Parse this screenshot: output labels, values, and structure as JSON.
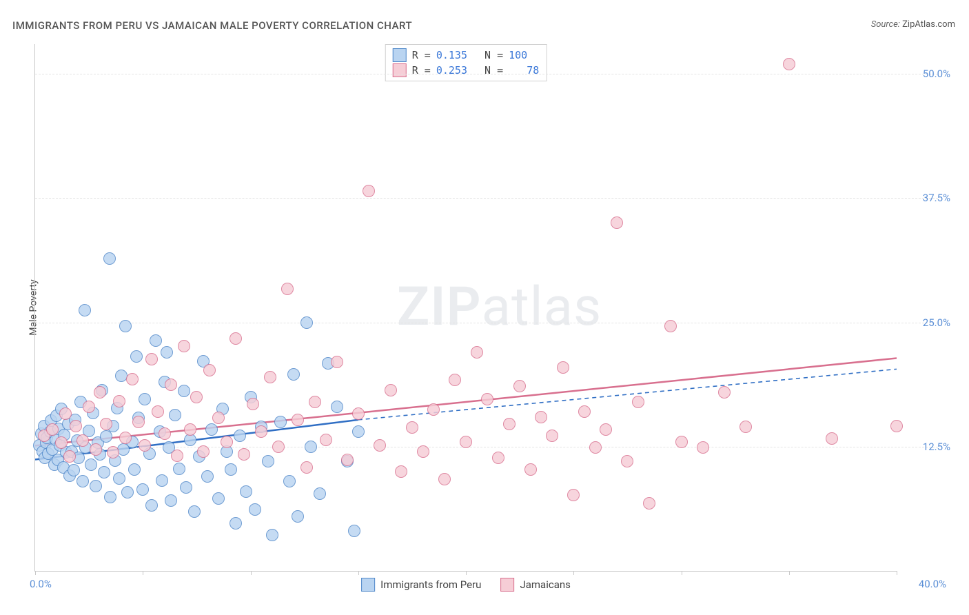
{
  "title": "IMMIGRANTS FROM PERU VS JAMAICAN MALE POVERTY CORRELATION CHART",
  "source_label": "Source:",
  "source_value": "ZipAtlas.com",
  "y_axis_label": "Male Poverty",
  "watermark_a": "ZIP",
  "watermark_b": "atlas",
  "chart": {
    "type": "scatter",
    "background_color": "#ffffff",
    "grid_color": "#e3e3e3",
    "axis_color": "#c8c8c8",
    "tick_label_color": "#5b8fd6",
    "xlim": [
      0,
      40
    ],
    "ylim": [
      0,
      53
    ],
    "x_ticks": [
      0,
      5,
      10,
      15,
      20,
      25,
      30,
      35,
      40
    ],
    "y_ticks": [
      12.5,
      25.0,
      37.5,
      50.0
    ],
    "y_tick_labels": [
      "12.5%",
      "25.0%",
      "37.5%",
      "50.0%"
    ],
    "x_origin_label": "0.0%",
    "x_max_label": "40.0%",
    "point_radius": 8,
    "point_border_width": 1.2
  },
  "series": [
    {
      "key": "peru",
      "label": "Immigrants from Peru",
      "fill": "#b9d4f1",
      "stroke": "#4f87c9",
      "r_value": "0.135",
      "n_value": "100",
      "trend": {
        "x1": 0,
        "y1": 11.2,
        "x2": 15,
        "y2": 15.2,
        "dash_x2": 40,
        "dash_y2": 20.3,
        "color": "#2f6ec4",
        "width": 2.5
      },
      "points": [
        [
          0.2,
          12.6
        ],
        [
          0.3,
          13.8
        ],
        [
          0.35,
          12.0
        ],
        [
          0.4,
          14.6
        ],
        [
          0.45,
          11.4
        ],
        [
          0.5,
          12.9
        ],
        [
          0.55,
          13.4
        ],
        [
          0.6,
          11.8
        ],
        [
          0.7,
          14.0
        ],
        [
          0.75,
          15.1
        ],
        [
          0.8,
          12.2
        ],
        [
          0.9,
          10.7
        ],
        [
          0.95,
          13.2
        ],
        [
          1.0,
          15.6
        ],
        [
          1.05,
          11.2
        ],
        [
          1.1,
          14.3
        ],
        [
          1.15,
          12.6
        ],
        [
          1.2,
          16.3
        ],
        [
          1.3,
          10.4
        ],
        [
          1.35,
          13.7
        ],
        [
          1.45,
          11.9
        ],
        [
          1.55,
          14.8
        ],
        [
          1.6,
          9.6
        ],
        [
          1.7,
          12.0
        ],
        [
          1.8,
          10.1
        ],
        [
          1.85,
          15.2
        ],
        [
          1.95,
          13.1
        ],
        [
          2.0,
          11.4
        ],
        [
          2.1,
          17.0
        ],
        [
          2.2,
          9.0
        ],
        [
          2.3,
          26.2
        ],
        [
          2.35,
          12.4
        ],
        [
          2.5,
          14.1
        ],
        [
          2.6,
          10.7
        ],
        [
          2.7,
          15.9
        ],
        [
          2.8,
          8.5
        ],
        [
          2.9,
          12.9
        ],
        [
          3.0,
          11.7
        ],
        [
          3.1,
          18.2
        ],
        [
          3.2,
          9.9
        ],
        [
          3.3,
          13.5
        ],
        [
          3.45,
          31.4
        ],
        [
          3.5,
          7.4
        ],
        [
          3.6,
          14.6
        ],
        [
          3.7,
          11.1
        ],
        [
          3.8,
          16.4
        ],
        [
          3.9,
          9.3
        ],
        [
          4.0,
          19.6
        ],
        [
          4.1,
          12.2
        ],
        [
          4.2,
          24.6
        ],
        [
          4.3,
          7.9
        ],
        [
          4.5,
          13.0
        ],
        [
          4.6,
          10.2
        ],
        [
          4.7,
          21.6
        ],
        [
          4.8,
          15.4
        ],
        [
          5.0,
          8.2
        ],
        [
          5.1,
          17.3
        ],
        [
          5.3,
          11.8
        ],
        [
          5.4,
          6.6
        ],
        [
          5.6,
          23.2
        ],
        [
          5.8,
          14.0
        ],
        [
          5.9,
          9.1
        ],
        [
          6.0,
          19.0
        ],
        [
          6.1,
          22.0
        ],
        [
          6.2,
          12.4
        ],
        [
          6.3,
          7.1
        ],
        [
          6.5,
          15.7
        ],
        [
          6.7,
          10.3
        ],
        [
          6.9,
          18.1
        ],
        [
          7.0,
          8.4
        ],
        [
          7.2,
          13.2
        ],
        [
          7.4,
          6.0
        ],
        [
          7.6,
          11.5
        ],
        [
          7.8,
          21.1
        ],
        [
          8.0,
          9.5
        ],
        [
          8.2,
          14.2
        ],
        [
          8.5,
          7.3
        ],
        [
          8.7,
          16.3
        ],
        [
          8.9,
          12.0
        ],
        [
          9.1,
          10.2
        ],
        [
          9.3,
          4.8
        ],
        [
          9.5,
          13.6
        ],
        [
          9.8,
          8.0
        ],
        [
          10.0,
          17.5
        ],
        [
          10.2,
          6.2
        ],
        [
          10.5,
          14.5
        ],
        [
          10.8,
          11.0
        ],
        [
          11.0,
          3.6
        ],
        [
          11.4,
          15.0
        ],
        [
          11.8,
          9.0
        ],
        [
          12.0,
          19.8
        ],
        [
          12.2,
          5.5
        ],
        [
          12.6,
          25.0
        ],
        [
          12.8,
          12.5
        ],
        [
          13.2,
          7.8
        ],
        [
          13.6,
          20.9
        ],
        [
          14.0,
          16.5
        ],
        [
          14.5,
          11.0
        ],
        [
          14.8,
          4.0
        ],
        [
          15.0,
          14.0
        ]
      ]
    },
    {
      "key": "jamaicans",
      "label": "Jamaicans",
      "fill": "#f6cdd6",
      "stroke": "#d86f8e",
      "r_value": "0.253",
      "n_value": "78",
      "trend": {
        "x1": 0,
        "y1": 12.6,
        "x2": 40,
        "y2": 21.4,
        "color": "#d86f8e",
        "width": 2.5
      },
      "points": [
        [
          0.4,
          13.6
        ],
        [
          0.8,
          14.2
        ],
        [
          1.2,
          12.9
        ],
        [
          1.4,
          15.8
        ],
        [
          1.6,
          11.5
        ],
        [
          1.9,
          14.6
        ],
        [
          2.2,
          13.1
        ],
        [
          2.5,
          16.5
        ],
        [
          2.8,
          12.2
        ],
        [
          3.0,
          18.0
        ],
        [
          3.3,
          14.8
        ],
        [
          3.6,
          11.9
        ],
        [
          3.9,
          17.1
        ],
        [
          4.2,
          13.4
        ],
        [
          4.5,
          19.3
        ],
        [
          4.8,
          15.0
        ],
        [
          5.1,
          12.6
        ],
        [
          5.4,
          21.3
        ],
        [
          5.7,
          16.0
        ],
        [
          6.0,
          13.8
        ],
        [
          6.3,
          18.7
        ],
        [
          6.6,
          11.6
        ],
        [
          6.9,
          22.6
        ],
        [
          7.2,
          14.2
        ],
        [
          7.5,
          17.5
        ],
        [
          7.8,
          12.0
        ],
        [
          8.1,
          20.2
        ],
        [
          8.5,
          15.4
        ],
        [
          8.9,
          13.0
        ],
        [
          9.3,
          23.4
        ],
        [
          9.7,
          11.7
        ],
        [
          10.1,
          16.8
        ],
        [
          10.5,
          14.0
        ],
        [
          10.9,
          19.5
        ],
        [
          11.3,
          12.5
        ],
        [
          11.7,
          28.4
        ],
        [
          12.2,
          15.2
        ],
        [
          12.6,
          10.4
        ],
        [
          13.0,
          17.0
        ],
        [
          13.5,
          13.2
        ],
        [
          14.0,
          21.0
        ],
        [
          14.5,
          11.2
        ],
        [
          15.0,
          15.8
        ],
        [
          15.5,
          38.2
        ],
        [
          16.0,
          12.6
        ],
        [
          16.5,
          18.2
        ],
        [
          17.0,
          10.0
        ],
        [
          17.5,
          14.4
        ],
        [
          18.0,
          12.0
        ],
        [
          18.5,
          16.2
        ],
        [
          19.0,
          9.2
        ],
        [
          19.5,
          19.2
        ],
        [
          20.0,
          13.0
        ],
        [
          20.5,
          22.0
        ],
        [
          21.0,
          17.3
        ],
        [
          21.5,
          11.4
        ],
        [
          22.0,
          14.8
        ],
        [
          22.5,
          18.6
        ],
        [
          23.0,
          10.2
        ],
        [
          23.5,
          15.5
        ],
        [
          24.0,
          13.6
        ],
        [
          24.5,
          20.5
        ],
        [
          25.0,
          7.6
        ],
        [
          25.5,
          16.0
        ],
        [
          26.0,
          12.4
        ],
        [
          26.5,
          14.2
        ],
        [
          27.0,
          35.0
        ],
        [
          27.5,
          11.0
        ],
        [
          28.0,
          17.0
        ],
        [
          28.5,
          6.8
        ],
        [
          29.5,
          24.6
        ],
        [
          30.0,
          13.0
        ],
        [
          31.0,
          12.4
        ],
        [
          32.0,
          18.0
        ],
        [
          33.0,
          14.5
        ],
        [
          35.0,
          51.0
        ],
        [
          37.0,
          13.3
        ],
        [
          40.0,
          14.6
        ]
      ]
    }
  ],
  "legend_top": {
    "r_label": "R =",
    "n_label": "N ="
  }
}
